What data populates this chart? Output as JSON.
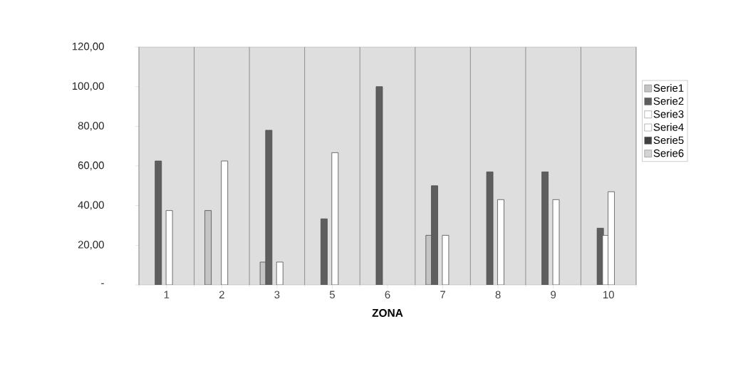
{
  "chart_data": {
    "type": "bar",
    "xlabel": "ZONA",
    "categories": [
      "1",
      "2",
      "3",
      "5",
      "6",
      "7",
      "8",
      "9",
      "10"
    ],
    "series": [
      {
        "name": "Serie1",
        "color": "#c4c4c4",
        "values": [
          null,
          37.5,
          11.5,
          null,
          null,
          25,
          null,
          null,
          null
        ]
      },
      {
        "name": "Serie2",
        "color": "#5e5e5e",
        "values": [
          62.5,
          null,
          78,
          33.3,
          100,
          50,
          57,
          57,
          28.6
        ]
      },
      {
        "name": "Serie3",
        "color": "#ffffff",
        "values": [
          null,
          null,
          null,
          null,
          null,
          null,
          null,
          null,
          25
        ]
      },
      {
        "name": "Serie4",
        "color": "#ffffff",
        "values": [
          37.5,
          62.5,
          11.5,
          66.7,
          null,
          25,
          43,
          43,
          47
        ]
      },
      {
        "name": "Serie5",
        "color": "#404040",
        "values": [
          null,
          null,
          null,
          null,
          null,
          null,
          null,
          null,
          null
        ]
      },
      {
        "name": "Serie6",
        "color": "#d4d4d4",
        "values": [
          null,
          null,
          null,
          null,
          null,
          null,
          null,
          null,
          null
        ]
      }
    ],
    "ylim": [
      0,
      120
    ],
    "yticks": [
      {
        "value": 0,
        "label": "-"
      },
      {
        "value": 20,
        "label": "20,00"
      },
      {
        "value": 40,
        "label": "40,00"
      },
      {
        "value": 60,
        "label": "60,00"
      },
      {
        "value": 80,
        "label": "80,00"
      },
      {
        "value": 100,
        "label": "100,00"
      },
      {
        "value": 120,
        "label": "120,00"
      }
    ],
    "grid": "x",
    "legend": "right"
  }
}
